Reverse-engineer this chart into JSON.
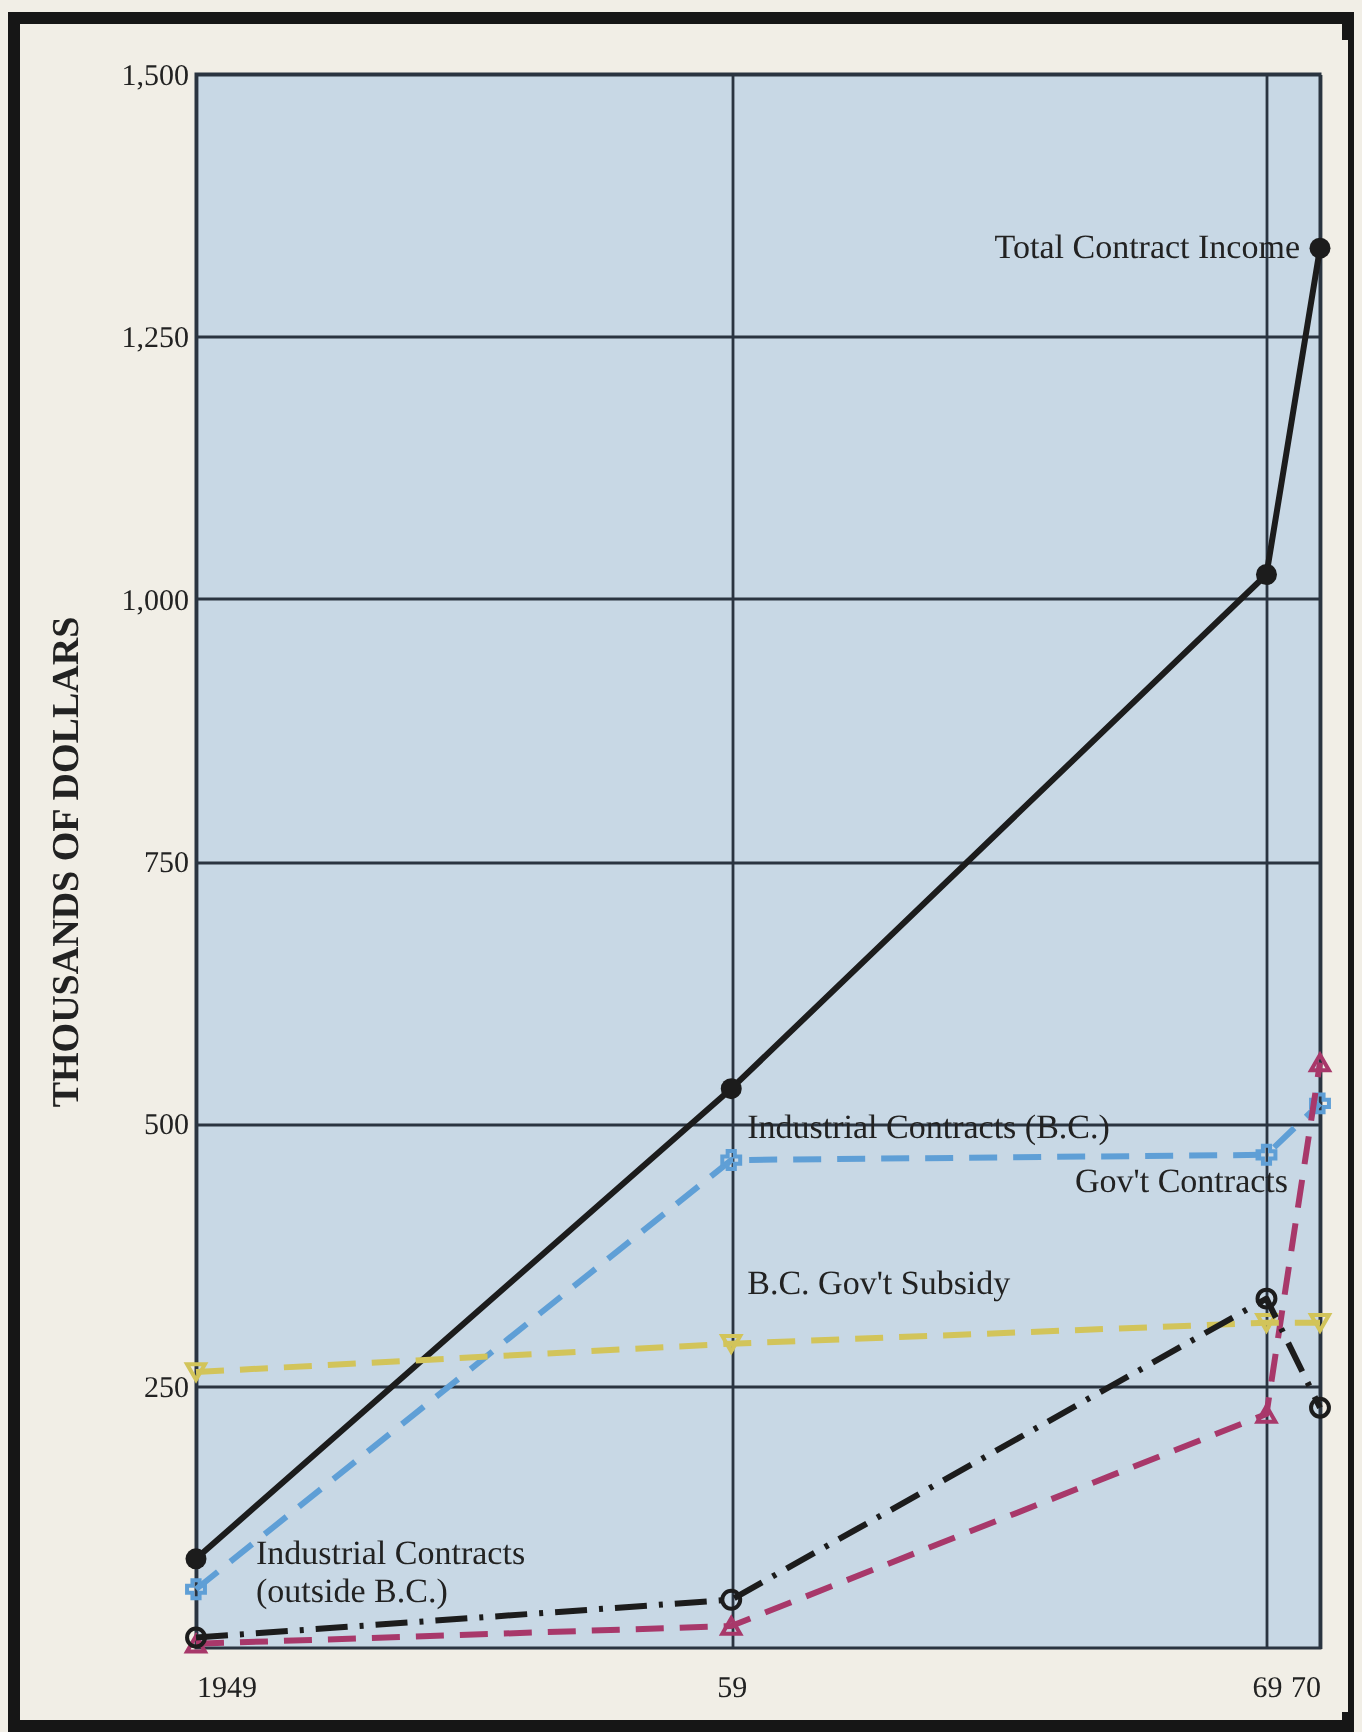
{
  "chart_data": {
    "type": "line",
    "ylabel": "THOUSANDS OF DOLLARS",
    "x": [
      1949,
      1959,
      1969,
      1970
    ],
    "xlim": [
      1949,
      1970
    ],
    "xticks": [
      1949,
      {
        "value": 1959,
        "label": "59"
      },
      {
        "value": 1969,
        "label": "69"
      },
      {
        "value": 1970,
        "label": "70"
      }
    ],
    "ylim": [
      0,
      1500
    ],
    "yticks": [
      {
        "value": 250,
        "label": "250"
      },
      {
        "value": 500,
        "label": "500"
      },
      {
        "value": 750,
        "label": "750"
      },
      {
        "value": 1000,
        "label": "1,000"
      },
      {
        "value": 1250,
        "label": "1,250"
      },
      {
        "value": 1500,
        "label": "1,500"
      }
    ],
    "grid": true,
    "series": [
      {
        "name": "Total Contract Income",
        "color": "#1c1c1c",
        "marker": "circle",
        "line_style": "solid",
        "values": [
          85,
          533,
          1023,
          1334
        ]
      },
      {
        "name": "Industrial Contracts (B.C.)",
        "color": "#5f9fd6",
        "marker": "cross",
        "line_style": "dashed",
        "values": [
          56,
          465,
          470,
          519
        ]
      },
      {
        "name": "Gov't Contracts",
        "color": "#a8386a",
        "marker": "triangle",
        "line_style": "dashed",
        "values": [
          4,
          21,
          223,
          558
        ]
      },
      {
        "name": "B.C. Gov't Subsidy",
        "color": "#d2c45a",
        "marker": "triangle-down",
        "line_style": "dashed",
        "values": [
          263,
          290,
          310,
          310
        ]
      },
      {
        "name": "Industrial Contracts (outside B.C.)",
        "color": "#1c1c1c",
        "marker": "open-circle",
        "line_style": "dashdot",
        "values": [
          10,
          46,
          333,
          229
        ]
      }
    ]
  }
}
